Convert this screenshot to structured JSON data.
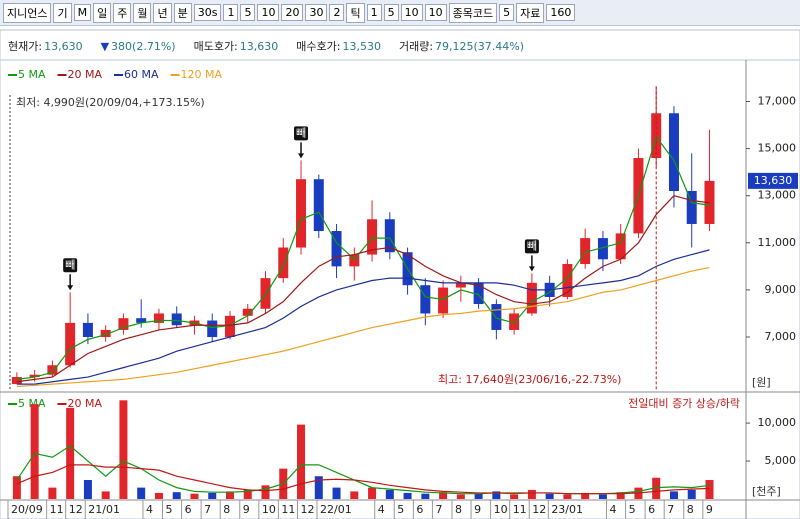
{
  "toolbar": {
    "items": [
      "지니언스",
      "기",
      "M",
      "일",
      "주",
      "월",
      "년",
      "분",
      "30s",
      "1",
      "5",
      "10",
      "20",
      "30",
      "2",
      "틱",
      "1",
      "5",
      "10",
      "10",
      "종목코드",
      "5",
      "자료",
      "160"
    ]
  },
  "info": [
    {
      "label": "현재가:",
      "value": "13,630"
    },
    {
      "label": "▼",
      "value": "380(2.71%)"
    },
    {
      "label": "매도호가:",
      "value": "13,630"
    },
    {
      "label": "매수호가:",
      "value": "13,530"
    },
    {
      "label": "거래량:",
      "value": "79,125(37.44%)"
    }
  ],
  "price_chart": {
    "type": "candlestick",
    "unit": "[원]",
    "min_label": "최저: 4,990원(20/09/04,+173.15%)",
    "max_label": "최고: 17,640원(23/06/16,-22.73%)",
    "signal_label": "빼",
    "up_color": "#e0262b",
    "down_color": "#1a3dbf",
    "ylim": [
      4750,
      18550
    ],
    "xlim": [
      0,
      166
    ],
    "yticks": [
      {
        "value": 7000,
        "label": "7,000"
      },
      {
        "value": 9000,
        "label": "9,000"
      },
      {
        "value": 11000,
        "label": "11,000"
      },
      {
        "value": 13000,
        "label": "13,000"
      },
      {
        "value": 15000,
        "label": "15,000"
      },
      {
        "value": 17000,
        "label": "17,000"
      }
    ],
    "current": {
      "value": 13630,
      "label": "13,630"
    },
    "x": [
      2,
      6,
      10,
      14,
      18,
      22,
      26,
      30,
      34,
      38,
      42,
      46,
      50,
      54,
      58,
      62,
      66,
      70,
      74,
      78,
      82,
      86,
      90,
      94,
      98,
      102,
      106,
      110,
      114,
      118,
      122,
      126,
      130,
      134,
      138,
      142,
      146,
      150,
      154,
      158
    ],
    "open": [
      5000,
      5300,
      5400,
      5800,
      7600,
      7000,
      7300,
      7800,
      7600,
      8000,
      7500,
      7700,
      7000,
      7900,
      8200,
      9500,
      10800,
      13700,
      11500,
      10000,
      10500,
      12000,
      10600,
      9200,
      8000,
      9100,
      9300,
      8400,
      7300,
      8000,
      9300,
      8700,
      10100,
      11200,
      10300,
      11400,
      14600,
      16500,
      13200,
      11800
    ],
    "high": [
      5500,
      5600,
      6000,
      8900,
      8000,
      7500,
      8000,
      8600,
      8200,
      8300,
      7900,
      8000,
      8100,
      8400,
      9800,
      11200,
      14500,
      13900,
      11800,
      10800,
      12800,
      12300,
      10800,
      9500,
      9400,
      9600,
      9500,
      8600,
      8200,
      9700,
      9600,
      10300,
      11600,
      11500,
      11800,
      15000,
      17640,
      16800,
      14800,
      15800
    ],
    "low": [
      4990,
      5100,
      5300,
      5700,
      6700,
      6800,
      7100,
      7400,
      7300,
      7400,
      7100,
      6800,
      6900,
      7600,
      8000,
      9300,
      10500,
      11200,
      9500,
      9400,
      10200,
      10300,
      8800,
      7500,
      7800,
      8500,
      8200,
      6900,
      7100,
      7900,
      8300,
      8600,
      9900,
      9800,
      10100,
      11200,
      14200,
      12500,
      10800,
      11500
    ],
    "close": [
      5300,
      5400,
      5800,
      7600,
      7000,
      7300,
      7800,
      7600,
      8000,
      7500,
      7700,
      7000,
      7900,
      8200,
      9500,
      10800,
      13700,
      11500,
      10000,
      10500,
      12000,
      10600,
      9200,
      8000,
      9100,
      9300,
      8400,
      7300,
      8000,
      9300,
      8700,
      10100,
      11200,
      10300,
      11400,
      14600,
      16500,
      13200,
      11800,
      13630
    ],
    "series": [
      {
        "name": "5 MA",
        "color": "#119911",
        "values": [
          5200,
          5300,
          5500,
          6500,
          6900,
          7100,
          7400,
          7600,
          7700,
          7700,
          7600,
          7400,
          7500,
          7900,
          8800,
          10000,
          12000,
          12300,
          11000,
          10300,
          11200,
          11200,
          9900,
          8700,
          8600,
          9000,
          8800,
          7800,
          7600,
          8500,
          8900,
          9500,
          10600,
          10800,
          11000,
          13000,
          15500,
          14500,
          12700,
          12600
        ]
      },
      {
        "name": "20 MA",
        "color": "#a01818",
        "values": [
          5100,
          5200,
          5300,
          5800,
          6300,
          6600,
          6900,
          7100,
          7300,
          7400,
          7500,
          7500,
          7500,
          7600,
          8000,
          8500,
          9300,
          10000,
          10400,
          10500,
          10700,
          10800,
          10500,
          10000,
          9600,
          9300,
          9200,
          8800,
          8500,
          8400,
          8500,
          8900,
          9500,
          10000,
          10300,
          11000,
          12200,
          13000,
          12800,
          12700
        ]
      },
      {
        "name": "60 MA",
        "color": "#1a2f9a",
        "values": [
          5000,
          5000,
          5100,
          5200,
          5300,
          5500,
          5700,
          5900,
          6100,
          6400,
          6600,
          6800,
          7000,
          7200,
          7400,
          7800,
          8300,
          8700,
          9000,
          9200,
          9400,
          9500,
          9500,
          9400,
          9300,
          9300,
          9300,
          9300,
          9200,
          9000,
          9000,
          9100,
          9200,
          9300,
          9400,
          9600,
          10000,
          10300,
          10500,
          10700
        ]
      },
      {
        "name": "120 MA",
        "color": "#f0a020",
        "values": [
          4900,
          4950,
          5000,
          5050,
          5100,
          5150,
          5200,
          5300,
          5400,
          5500,
          5650,
          5800,
          5950,
          6100,
          6250,
          6400,
          6600,
          6800,
          7000,
          7200,
          7400,
          7550,
          7700,
          7850,
          7950,
          8000,
          8100,
          8150,
          8200,
          8300,
          8400,
          8500,
          8700,
          8900,
          9000,
          9200,
          9400,
          9600,
          9800,
          9950
        ]
      }
    ]
  },
  "volume_chart": {
    "type": "bar",
    "unit": "[천주]",
    "note": "전일대비 증가 상승/하락",
    "ylim": [
      0,
      13700
    ],
    "yticks": [
      {
        "value": 5000,
        "label": "5,000"
      },
      {
        "value": 10000,
        "label": "10,000"
      }
    ],
    "values": [
      3000,
      12500,
      1500,
      12000,
      2500,
      1000,
      13000,
      1500,
      800,
      900,
      700,
      800,
      1000,
      1200,
      1800,
      4000,
      9800,
      3000,
      1500,
      1000,
      1500,
      1200,
      800,
      700,
      900,
      600,
      700,
      1000,
      600,
      1200,
      700,
      600,
      800,
      600,
      900,
      1500,
      2800,
      1000,
      1200,
      2500
    ],
    "series": [
      {
        "name": "5 MA",
        "color": "#119911",
        "values": [
          2500,
          6000,
          5500,
          7000,
          5000,
          3000,
          5000,
          4000,
          2500,
          1500,
          1000,
          900,
          900,
          1000,
          1300,
          2000,
          4500,
          4500,
          3500,
          2500,
          1500,
          1300,
          1100,
          900,
          800,
          700,
          700,
          800,
          700,
          800,
          800,
          700,
          700,
          700,
          800,
          1000,
          1500,
          1600,
          1500,
          1800
        ]
      },
      {
        "name": "20 MA",
        "color": "#c01818",
        "values": [
          2000,
          3000,
          3500,
          4500,
          4500,
          4200,
          4200,
          4000,
          3800,
          3000,
          2500,
          2000,
          1500,
          1200,
          1100,
          1300,
          2000,
          2500,
          2600,
          2500,
          2200,
          1800,
          1500,
          1200,
          1000,
          900,
          800,
          800,
          800,
          800,
          800,
          700,
          700,
          700,
          700,
          800,
          1000,
          1200,
          1300,
          1400
        ]
      }
    ]
  },
  "x_axis": {
    "xticks": [
      {
        "value": 0,
        "label": "20/09"
      },
      {
        "value": 8.7,
        "label": "11"
      },
      {
        "value": 13,
        "label": "12"
      },
      {
        "value": 17.4,
        "label": "21/01"
      },
      {
        "value": 30.4,
        "label": "4"
      },
      {
        "value": 34.8,
        "label": "5"
      },
      {
        "value": 39.1,
        "label": "6"
      },
      {
        "value": 43.5,
        "label": "7"
      },
      {
        "value": 47.8,
        "label": "8"
      },
      {
        "value": 52.2,
        "label": "9"
      },
      {
        "value": 56.5,
        "label": "10"
      },
      {
        "value": 60.9,
        "label": "11"
      },
      {
        "value": 65.2,
        "label": "12"
      },
      {
        "value": 69.6,
        "label": "22/01"
      },
      {
        "value": 82.6,
        "label": "4"
      },
      {
        "value": 87,
        "label": "5"
      },
      {
        "value": 91.3,
        "label": "6"
      },
      {
        "value": 95.6,
        "label": "7"
      },
      {
        "value": 100,
        "label": "8"
      },
      {
        "value": 104.3,
        "label": "9"
      },
      {
        "value": 108.7,
        "label": "10"
      },
      {
        "value": 113,
        "label": "11"
      },
      {
        "value": 117.4,
        "label": "12"
      },
      {
        "value": 121.7,
        "label": "23/01"
      },
      {
        "value": 134.8,
        "label": "4"
      },
      {
        "value": 139.1,
        "label": "5"
      },
      {
        "value": 143.5,
        "label": "6"
      },
      {
        "value": 147.8,
        "label": "7"
      },
      {
        "value": 152.2,
        "label": "8"
      },
      {
        "value": 156.5,
        "label": "9"
      }
    ]
  }
}
